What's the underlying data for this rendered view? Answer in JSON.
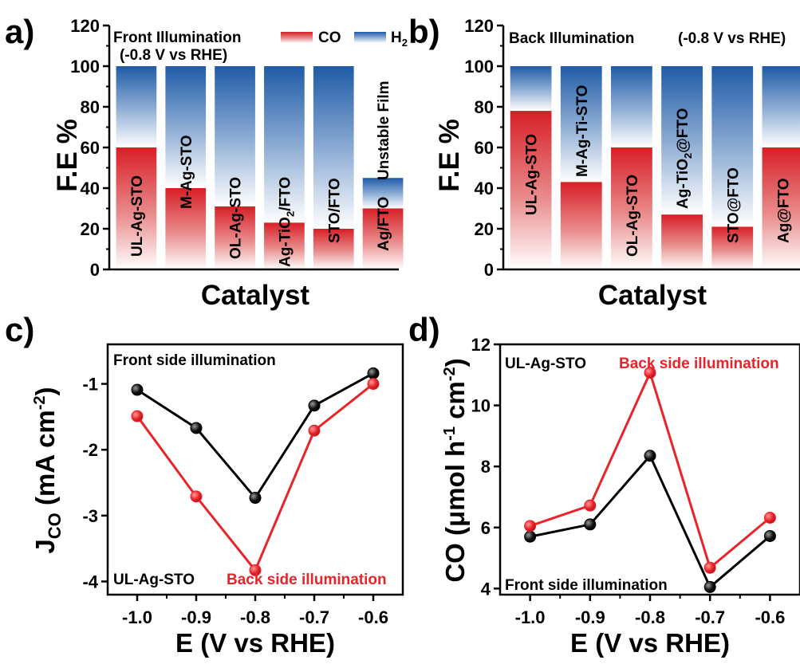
{
  "colors": {
    "co_red": "#d71f26",
    "h2_blue": "#1f5ba7",
    "front_line": "#000000",
    "back_line": "#e8242a"
  },
  "chart_data": [
    {
      "panel": "a)",
      "type": "bar",
      "title": "Front Illumination",
      "condition": "(-0.8 V vs RHE)",
      "xlabel": "Catalyst",
      "ylabel": "F.E %",
      "ylim": [
        0,
        120
      ],
      "yticks": [
        "0",
        "20",
        "40",
        "60",
        "80",
        "100",
        "120"
      ],
      "legend": [
        "CO",
        "H2"
      ],
      "legend_placement": "top-right",
      "categories": [
        "UL-Ag-STO",
        "M-Ag-STO",
        "OL-Ag-STO",
        "Ag-TiO2/FTO",
        "STO/FTO",
        "Ag/FTO"
      ],
      "series": [
        {
          "name": "CO",
          "values": [
            60,
            40,
            31,
            23,
            20,
            30
          ]
        },
        {
          "name": "H2",
          "values": [
            40,
            60,
            69,
            77,
            80,
            15
          ]
        }
      ],
      "annotations": [
        "Unstable Film"
      ]
    },
    {
      "panel": "b)",
      "type": "bar",
      "title": "Back Illumination",
      "condition": "(-0.8 V vs RHE)",
      "xlabel": "Catalyst",
      "ylabel": "F.E %",
      "ylim": [
        0,
        120
      ],
      "yticks": [
        "0",
        "20",
        "40",
        "60",
        "80",
        "100",
        "120"
      ],
      "categories": [
        "UL-Ag-STO",
        "M-Ag-Ti-STO",
        "OL-Ag-STO",
        "Ag-TiO2@FTO",
        "STO@FTO",
        "Ag@FTO"
      ],
      "series": [
        {
          "name": "CO",
          "values": [
            78,
            43,
            60,
            27,
            21,
            60
          ]
        },
        {
          "name": "H2",
          "values": [
            22,
            57,
            40,
            73,
            79,
            40
          ]
        }
      ]
    },
    {
      "panel": "c)",
      "type": "line",
      "xlabel": "E (V vs RHE)",
      "ylabel": "J_CO (mA cm^-2)",
      "xlim": [
        -1.05,
        -0.55
      ],
      "ylim": [
        -4.2,
        -0.4
      ],
      "xticks": [
        "-1.0",
        "-0.9",
        "-0.8",
        "-0.7",
        "-0.6"
      ],
      "yticks": [
        "-1",
        "-2",
        "-3",
        "-4"
      ],
      "x": [
        -1.0,
        -0.9,
        -0.8,
        -0.7,
        -0.6
      ],
      "series": [
        {
          "name": "Front side illumination",
          "values": [
            -1.09,
            -1.67,
            -2.73,
            -1.33,
            -0.84
          ]
        },
        {
          "name": "Back side illumination",
          "values": [
            -1.49,
            -2.71,
            -3.83,
            -1.71,
            -1.0
          ]
        }
      ],
      "annotations": [
        "UL-Ag-STO"
      ]
    },
    {
      "panel": "d)",
      "type": "line",
      "xlabel": "E (V vs RHE)",
      "ylabel": "CO (μmol h^-1 cm^-2)",
      "xlim": [
        -1.05,
        -0.55
      ],
      "ylim": [
        3.8,
        12
      ],
      "xticks": [
        "-1.0",
        "-0.9",
        "-0.8",
        "-0.7",
        "-0.6"
      ],
      "yticks": [
        "4",
        "6",
        "8",
        "10",
        "12"
      ],
      "x": [
        -1.0,
        -0.9,
        -0.8,
        -0.7,
        -0.6
      ],
      "series": [
        {
          "name": "Front side illumination",
          "values": [
            5.7,
            6.1,
            8.35,
            4.05,
            5.72
          ]
        },
        {
          "name": "Back side illumination",
          "values": [
            6.05,
            6.72,
            11.07,
            4.68,
            6.32
          ]
        }
      ],
      "annotations": [
        "UL-Ag-STO"
      ]
    }
  ]
}
